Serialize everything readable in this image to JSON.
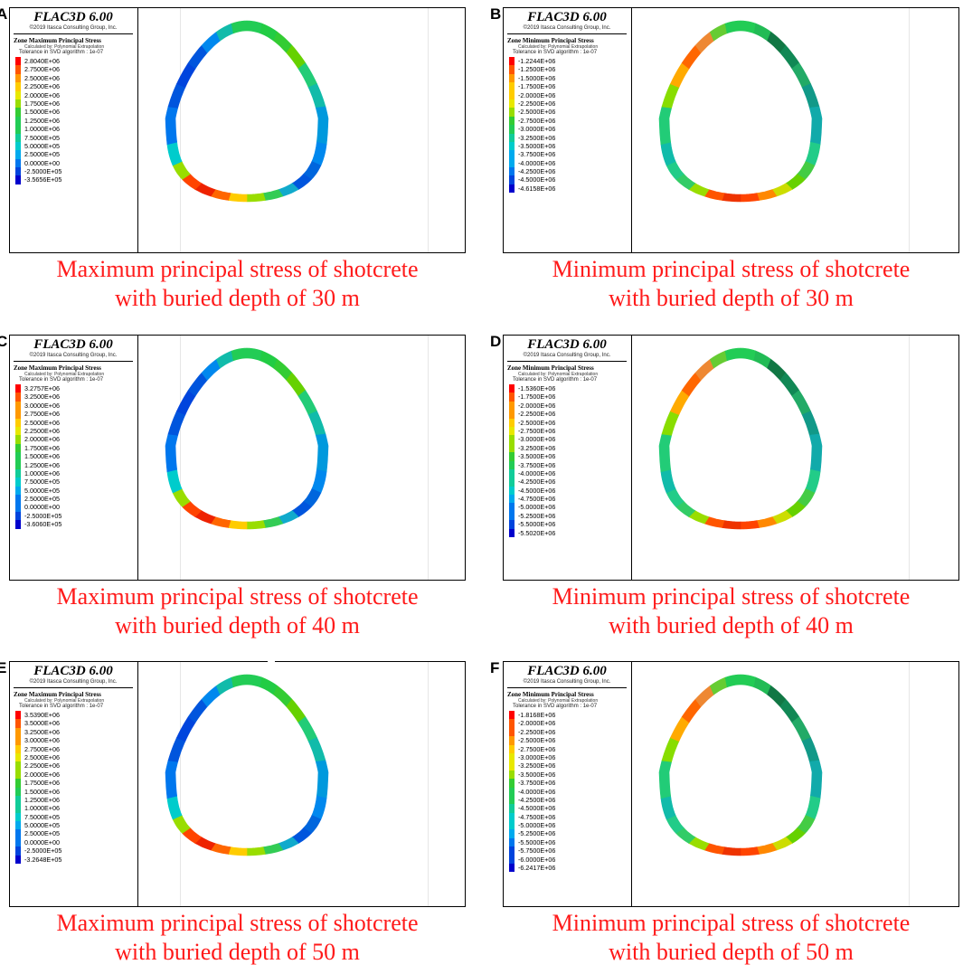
{
  "colors": {
    "max_scale": [
      "#ff0000",
      "#ff5500",
      "#ff9900",
      "#ffcc00",
      "#e8e800",
      "#99dd00",
      "#33cc33",
      "#22cc55",
      "#11cc99",
      "#00cccc",
      "#00aaee",
      "#0077ee",
      "#0044dd",
      "#0000cc"
    ],
    "caption": "#ff1a1a"
  },
  "panels": [
    {
      "letter": "A",
      "app": "FLAC3D 6.00",
      "copyright": "©2019 Itasca Consulting Group, Inc.",
      "legend_title": "Zone Maximum Principal Stress",
      "legend_sub": "Calculated by: Polynomial Extrapolation",
      "tolerance": "Tolerance in SVD algorithm : 1e-07",
      "values": [
        "2.8040E+06",
        "2.7500E+06",
        "2.5000E+06",
        "2.2500E+06",
        "2.0000E+06",
        "1.7500E+06",
        "1.5000E+06",
        "1.2500E+06",
        "1.0000E+06",
        "7.5000E+05",
        "5.0000E+05",
        "2.5000E+05",
        "0.0000E+00",
        "-2.5000E+05",
        "-3.5656E+05"
      ],
      "caption_line1": "Maximum principal stress of shotcrete",
      "caption_line2": "with buried depth of 30 m"
    },
    {
      "letter": "B",
      "app": "FLAC3D 6.00",
      "copyright": "©2019 Itasca Consulting Group, Inc.",
      "legend_title": "Zone Minimum Principal Stress",
      "legend_sub": "Calculated by: Polynomial Extrapolation",
      "tolerance": "Tolerance in SVD algorithm : 1e-07",
      "values": [
        "-1.2244E+06",
        "-1.2500E+06",
        "-1.5000E+06",
        "-1.7500E+06",
        "-2.0000E+06",
        "-2.2500E+06",
        "-2.5000E+06",
        "-2.7500E+06",
        "-3.0000E+06",
        "-3.2500E+06",
        "-3.5000E+06",
        "-3.7500E+06",
        "-4.0000E+06",
        "-4.2500E+06",
        "-4.5000E+06",
        "-4.6158E+06"
      ],
      "caption_line1": "Minimum principal stress of shotcrete",
      "caption_line2": "with buried depth of 30 m"
    },
    {
      "letter": "C",
      "app": "FLAC3D 6.00",
      "copyright": "©2019 Itasca Consulting Group, Inc.",
      "legend_title": "Zone Maximum Principal Stress",
      "legend_sub": "Calculated by: Polynomial Extrapolation",
      "tolerance": "Tolerance in SVD algorithm : 1e-07",
      "values": [
        "3.2757E+06",
        "3.2500E+06",
        "3.0000E+06",
        "2.7500E+06",
        "2.5000E+06",
        "2.2500E+06",
        "2.0000E+06",
        "1.7500E+06",
        "1.5000E+06",
        "1.2500E+06",
        "1.0000E+06",
        "7.5000E+05",
        "5.0000E+05",
        "2.5000E+05",
        "0.0000E+00",
        "-2.5000E+05",
        "-3.6060E+05"
      ],
      "caption_line1": "Maximum principal stress of shotcrete",
      "caption_line2": "with buried depth of 40 m"
    },
    {
      "letter": "D",
      "app": "FLAC3D 6.00",
      "copyright": "©2019 Itasca Consulting Group, Inc.",
      "legend_title": "Zone Minimum Principal Stress",
      "legend_sub": "Calculated by: Polynomial Extrapolation",
      "tolerance": "Tolerance in SVD algorithm : 1e-07",
      "values": [
        "-1.5360E+06",
        "-1.7500E+06",
        "-2.0000E+06",
        "-2.2500E+06",
        "-2.5000E+06",
        "-2.7500E+06",
        "-3.0000E+06",
        "-3.2500E+06",
        "-3.5000E+06",
        "-3.7500E+06",
        "-4.0000E+06",
        "-4.2500E+06",
        "-4.5000E+06",
        "-4.7500E+06",
        "-5.0000E+06",
        "-5.2500E+06",
        "-5.5000E+06",
        "-5.5020E+06"
      ],
      "caption_line1": "Minimum principal stress of shotcrete",
      "caption_line2": "with buried depth of 40 m"
    },
    {
      "letter": "E",
      "app": "FLAC3D 6.00",
      "copyright": "©2019 Itasca Consulting Group, Inc.",
      "legend_title": "Zone Maximum Principal Stress",
      "legend_sub": "Calculated by: Polynomial Extrapolation",
      "tolerance": "Tolerance in SVD algorithm : 1e-07",
      "values": [
        "3.5390E+06",
        "3.5000E+06",
        "3.2500E+06",
        "3.0000E+06",
        "2.7500E+06",
        "2.5000E+06",
        "2.2500E+06",
        "2.0000E+06",
        "1.7500E+06",
        "1.5000E+06",
        "1.2500E+06",
        "1.0000E+06",
        "7.5000E+05",
        "5.0000E+05",
        "2.5000E+05",
        "0.0000E+00",
        "-2.5000E+05",
        "-3.2648E+05"
      ],
      "caption_line1": "Maximum principal stress of shotcrete",
      "caption_line2": "with buried depth of 50 m"
    },
    {
      "letter": "F",
      "app": "FLAC3D 6.00",
      "copyright": "©2019 Itasca Consulting Group, Inc.",
      "legend_title": "Zone Minimum Principal Stress",
      "legend_sub": "Calculated by: Polynomial Extrapolation",
      "tolerance": "Tolerance in SVD algorithm : 1e-07",
      "values": [
        "-1.8168E+06",
        "-2.0000E+06",
        "-2.2500E+06",
        "-2.5000E+06",
        "-2.7500E+06",
        "-3.0000E+06",
        "-3.2500E+06",
        "-3.5000E+06",
        "-3.7500E+06",
        "-4.0000E+06",
        "-4.2500E+06",
        "-4.5000E+06",
        "-4.7500E+06",
        "-5.0000E+06",
        "-5.2500E+06",
        "-5.5000E+06",
        "-5.7500E+06",
        "-6.0000E+06",
        "-6.2417E+06"
      ],
      "caption_line1": "Minimum principal stress of shotcrete",
      "caption_line2": "with buried depth of 50 m"
    }
  ]
}
